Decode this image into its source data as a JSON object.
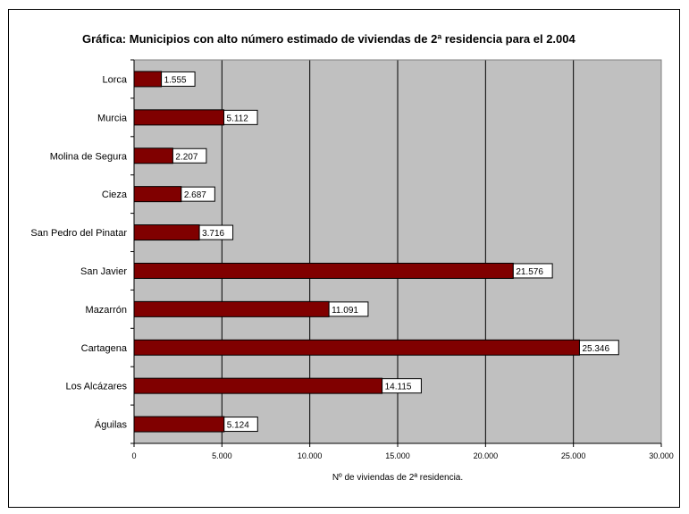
{
  "chart_data": {
    "type": "bar",
    "orientation": "horizontal",
    "title": "Gráfica: Municipios con alto número estimado de viviendas de 2ª residencia para el 2.004",
    "xlabel": "Nº de viviendas de 2ª residencia.",
    "ylabel": "",
    "categories": [
      "Lorca",
      "Murcia",
      "Molina de Segura",
      "Cieza",
      "San Pedro del Pinatar",
      "San Javier",
      "Mazarrón",
      "Cartagena",
      "Los Alcázares",
      "Águilas"
    ],
    "values": [
      1555,
      5112,
      2207,
      2687,
      3716,
      21576,
      11091,
      25346,
      14115,
      5124
    ],
    "value_labels": [
      "1.555",
      "5.112",
      "2.207",
      "2.687",
      "3.716",
      "21.576",
      "11.091",
      "25.346",
      "14.115",
      "5.124"
    ],
    "xlim": [
      0,
      30000
    ],
    "x_ticks": [
      0,
      5000,
      10000,
      15000,
      20000,
      25000,
      30000
    ],
    "x_tick_labels": [
      "0",
      "5.000",
      "10.000",
      "15.000",
      "20.000",
      "25.000",
      "30.000"
    ],
    "grid": "vertical",
    "legend": "none",
    "colors": {
      "bar": "#800000",
      "plot_background": "#c0c0c0",
      "gridline": "#000000"
    }
  }
}
